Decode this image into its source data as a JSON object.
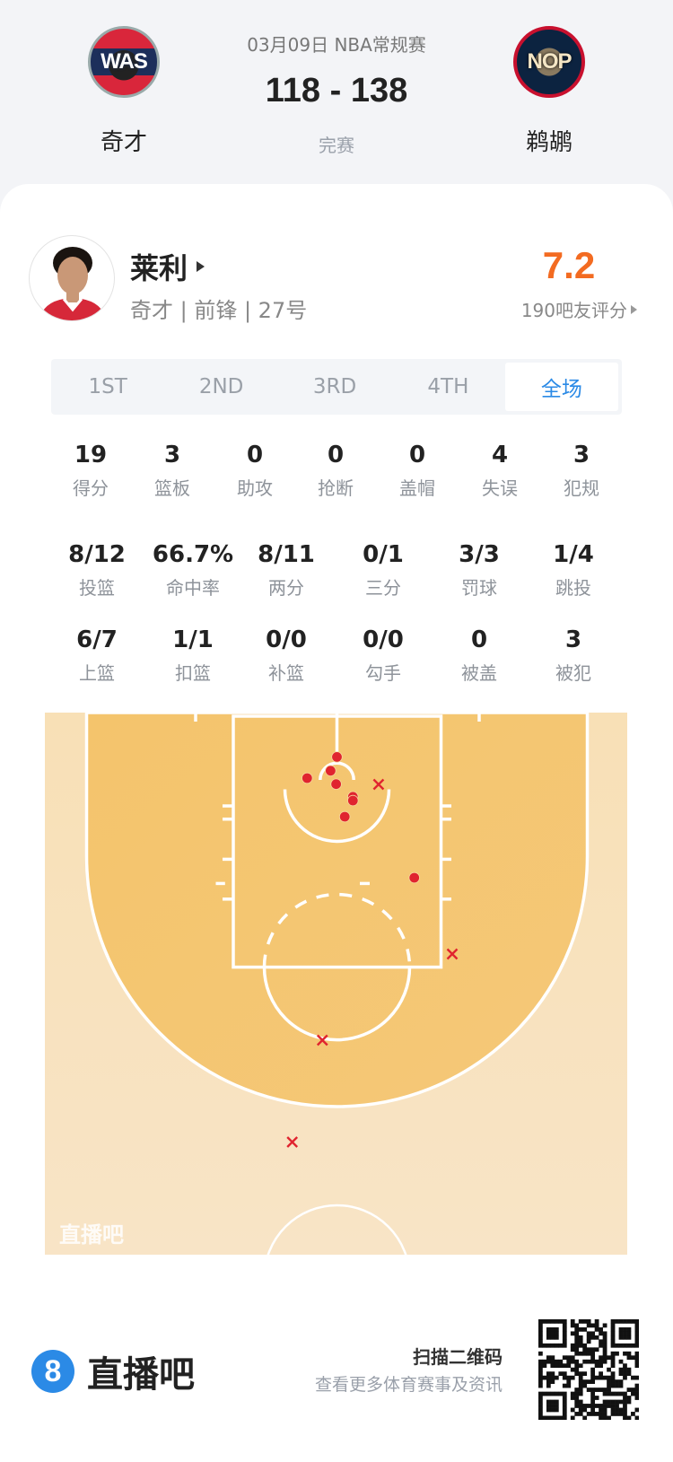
{
  "header": {
    "date_league": "03月09日 NBA常规赛",
    "score": "118 - 138",
    "status": "完赛",
    "home": {
      "name": "奇才",
      "abbr": "WAS",
      "color": "#1d2f5b",
      "accent": "#d9263b"
    },
    "away": {
      "name": "鹈鹕",
      "abbr": "NOP",
      "color": "#0c2340",
      "accent": "#c8102e"
    }
  },
  "player": {
    "name": "莱利",
    "meta": "奇才 | 前锋 | 27号",
    "rating": "7.2",
    "rating_count": "190吧友评分",
    "rating_color": "#f36b21"
  },
  "tabs": [
    {
      "label": "1ST"
    },
    {
      "label": "2ND"
    },
    {
      "label": "3RD"
    },
    {
      "label": "4TH"
    },
    {
      "label": "全场",
      "active": true
    }
  ],
  "stats_row1": [
    {
      "value": "19",
      "label": "得分"
    },
    {
      "value": "3",
      "label": "篮板"
    },
    {
      "value": "0",
      "label": "助攻"
    },
    {
      "value": "0",
      "label": "抢断"
    },
    {
      "value": "0",
      "label": "盖帽"
    },
    {
      "value": "4",
      "label": "失误"
    },
    {
      "value": "3",
      "label": "犯规"
    }
  ],
  "stats_row2": [
    {
      "value": "8/12",
      "label": "投篮"
    },
    {
      "value": "66.7%",
      "label": "命中率"
    },
    {
      "value": "8/11",
      "label": "两分"
    },
    {
      "value": "0/1",
      "label": "三分"
    },
    {
      "value": "3/3",
      "label": "罚球"
    },
    {
      "value": "1/4",
      "label": "跳投"
    }
  ],
  "stats_row3": [
    {
      "value": "6/7",
      "label": "上篮"
    },
    {
      "value": "1/1",
      "label": "扣篮"
    },
    {
      "value": "0/0",
      "label": "补篮"
    },
    {
      "value": "0/0",
      "label": "勾手"
    },
    {
      "value": "0",
      "label": "被盖"
    },
    {
      "value": "3",
      "label": "被犯"
    }
  ],
  "shot_chart": {
    "made": 8,
    "missed": 4,
    "made_marker": "filled-dot",
    "missed_marker": "x-mark",
    "marker_color": "#e0242f",
    "watermark": "直播吧"
  },
  "footer": {
    "brand": "直播吧",
    "brand_icon": "8",
    "brand_color": "#2b8ae6",
    "scan_title": "扫描二维码",
    "scan_subtitle": "查看更多体育赛事及资讯"
  }
}
